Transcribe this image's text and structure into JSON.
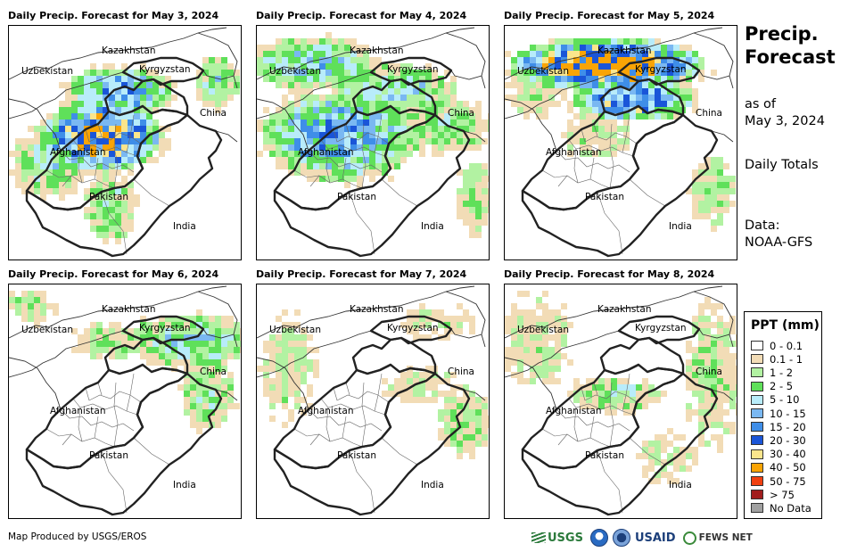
{
  "panels": [
    {
      "title": "Daily Precip. Forecast for May 3, 2024",
      "rain": "heavy"
    },
    {
      "title": "Daily Precip. Forecast for May 4, 2024",
      "rain": "moderate"
    },
    {
      "title": "Daily Precip. Forecast for May 5, 2024",
      "rain": "north"
    },
    {
      "title": "Daily Precip. Forecast for May 6, 2024",
      "rain": "light"
    },
    {
      "title": "Daily Precip. Forecast for May 7, 2024",
      "rain": "minimal"
    },
    {
      "title": "Daily Precip. Forecast for May 8, 2024",
      "rain": "light-center"
    }
  ],
  "map_labels": {
    "kazakhstan": "Kazakhstan",
    "uzbekistan": "Uzbekistan",
    "kyrgyzstan": "Kyrgyzstan",
    "china": "China",
    "afghanistan": "Afghanistan",
    "pakistan": "Pakistan",
    "india": "India"
  },
  "sidebar": {
    "title_line1": "Precip.",
    "title_line2": "Forecast",
    "as_of_label": "as of",
    "as_of_date": "May 3, 2024",
    "totals": "Daily Totals",
    "data_label": "Data:",
    "data_source": "NOAA-GFS"
  },
  "legend": {
    "title": "PPT (mm)",
    "items": [
      {
        "label": "0 - 0.1",
        "color": "#ffffff"
      },
      {
        "label": "0.1 - 1",
        "color": "#f2dcb6"
      },
      {
        "label": "1 - 2",
        "color": "#b2f2a2"
      },
      {
        "label": "2 - 5",
        "color": "#5fe05a"
      },
      {
        "label": "5 - 10",
        "color": "#b8ecfa"
      },
      {
        "label": "10 - 15",
        "color": "#7ab8f2"
      },
      {
        "label": "15 - 20",
        "color": "#3f8ee8"
      },
      {
        "label": "20 - 30",
        "color": "#1a55d8"
      },
      {
        "label": "30 - 40",
        "color": "#fbe58c"
      },
      {
        "label": "40 - 50",
        "color": "#f9a405"
      },
      {
        "label": "50 - 75",
        "color": "#f04010"
      },
      {
        "label": "> 75",
        "color": "#a11e1e"
      },
      {
        "label": "No Data",
        "color": "#a0a0a0"
      }
    ]
  },
  "footer": {
    "credit": "Map Produced by USGS/EROS",
    "usgs": "USGS",
    "usaid": "USAID",
    "fews": "FEWS NET"
  }
}
